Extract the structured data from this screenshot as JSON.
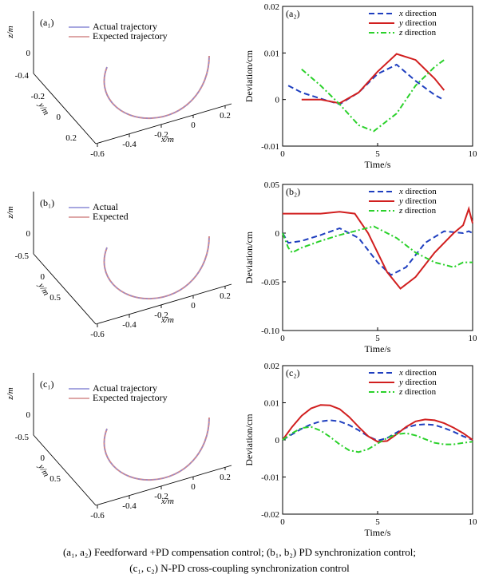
{
  "colors": {
    "actual": "#8a8ad6",
    "expected": "#d48a8a",
    "x_series": "#1f3fbf",
    "y_series": "#d11f1f",
    "z_series": "#2bd12b"
  },
  "caption": {
    "line1": "(a₁,  a₂)  Feedforward  +PD compensation control; (b₁, b₂) PD synchronization control;",
    "line2": "(c₁, c₂) N-PD cross-coupling synchronization control"
  },
  "chart_data": [
    {
      "panel": "(a₁)",
      "type": "line",
      "projection": "3d",
      "axis_labels": {
        "x": "x/m",
        "y": "y/m",
        "z": "z/m"
      },
      "x_ticks": [
        "-0.6",
        "-0.4",
        "-0.2",
        "0",
        "0.2"
      ],
      "y_ticks": [
        "-0.4",
        "-0.2",
        "0",
        "0.2"
      ],
      "z_ticks": [
        "0"
      ],
      "legend": [
        "Actual trajectory",
        "Expected trajectory"
      ]
    },
    {
      "panel": "(a₂)",
      "type": "line",
      "xlabel": "Time/s",
      "ylabel": "Deviation/cm",
      "xlim": [
        0,
        10
      ],
      "ylim": [
        -0.01,
        0.02
      ],
      "x_ticks": [
        "0",
        "5",
        "10"
      ],
      "y_ticks": [
        "-0.01",
        "0",
        "0.01",
        "0.02"
      ],
      "legend_position": "top-right",
      "series": [
        {
          "name": "x direction",
          "style": "dashed",
          "x": [
            0.3,
            1,
            2,
            3,
            4,
            5,
            6,
            7,
            8,
            8.5
          ],
          "y": [
            0.003,
            0.0015,
            0.0002,
            -0.001,
            0.0015,
            0.0055,
            0.0075,
            0.004,
            0.001,
            -0.0001
          ]
        },
        {
          "name": "y direction",
          "style": "solid",
          "x": [
            1,
            2,
            3,
            4,
            5,
            6,
            7,
            8,
            8.5
          ],
          "y": [
            0,
            0,
            -0.0008,
            0.0015,
            0.006,
            0.0098,
            0.0085,
            0.0045,
            0.002
          ]
        },
        {
          "name": "z direction",
          "style": "dashdot",
          "x": [
            1,
            2,
            3,
            4,
            4.8,
            6,
            7,
            8,
            8.5
          ],
          "y": [
            0.0065,
            0.003,
            -0.001,
            -0.0055,
            -0.0068,
            -0.003,
            0.003,
            0.007,
            0.0085
          ]
        }
      ]
    },
    {
      "panel": "(b₁)",
      "type": "line",
      "projection": "3d",
      "axis_labels": {
        "x": "x/m",
        "y": "y/m",
        "z": "z/m"
      },
      "x_ticks": [
        "-0.6",
        "-0.4",
        "-0.2",
        "0",
        "0.2"
      ],
      "y_ticks": [
        "-0.5",
        "0",
        "0.5"
      ],
      "z_ticks": [
        "0"
      ],
      "legend": [
        "Actual",
        "Expected"
      ]
    },
    {
      "panel": "(b₂)",
      "type": "line",
      "xlabel": "Time/s",
      "ylabel": "Deviation/cm",
      "xlim": [
        0,
        10
      ],
      "ylim": [
        -0.1,
        0.05
      ],
      "x_ticks": [
        "0",
        "5",
        "10"
      ],
      "y_ticks": [
        "-0.10",
        "-0.05",
        "0",
        "0.05"
      ],
      "legend_position": "top-right",
      "series": [
        {
          "name": "x direction",
          "style": "dashed",
          "x": [
            0,
            0.3,
            1,
            2,
            3,
            4,
            5,
            5.7,
            6.5,
            7.5,
            8.5,
            9.5,
            9.8,
            10
          ],
          "y": [
            0,
            -0.01,
            -0.008,
            -0.002,
            0.005,
            -0.005,
            -0.03,
            -0.043,
            -0.035,
            -0.01,
            0.002,
            0.0,
            0.002,
            0
          ]
        },
        {
          "name": "y direction",
          "style": "solid",
          "x": [
            0,
            1,
            2,
            3,
            3.8,
            4.5,
            5.5,
            6.2,
            7,
            8,
            9,
            9.5,
            9.8,
            10
          ],
          "y": [
            0.02,
            0.02,
            0.02,
            0.022,
            0.02,
            0.0,
            -0.04,
            -0.057,
            -0.045,
            -0.02,
            0.0,
            0.008,
            0.025,
            0.01
          ]
        },
        {
          "name": "z direction",
          "style": "dashdot",
          "x": [
            0,
            0.3,
            0.5,
            1,
            2,
            3,
            4,
            4.8,
            6,
            7,
            8,
            9,
            9.5,
            10
          ],
          "y": [
            0,
            -0.015,
            -0.02,
            -0.015,
            -0.008,
            -0.002,
            0.003,
            0.007,
            -0.005,
            -0.02,
            -0.03,
            -0.035,
            -0.03,
            -0.03
          ]
        }
      ]
    },
    {
      "panel": "(c₁)",
      "type": "line",
      "projection": "3d",
      "axis_labels": {
        "x": "x/m",
        "y": "y/m",
        "z": "z/m"
      },
      "x_ticks": [
        "-0.6",
        "-0.4",
        "-0.2",
        "0",
        "0.2"
      ],
      "y_ticks": [
        "-0.5",
        "0",
        "0.5"
      ],
      "z_ticks": [
        "0"
      ],
      "legend": [
        "Actual trajectory",
        "Expected trajectory"
      ]
    },
    {
      "panel": "(c₂)",
      "type": "line",
      "xlabel": "Time/s",
      "ylabel": "Deviation/cm",
      "xlim": [
        0,
        10
      ],
      "ylim": [
        -0.02,
        0.02
      ],
      "x_ticks": [
        "0",
        "5",
        "10"
      ],
      "y_ticks": [
        "-0.02",
        "-0.01",
        "0",
        "0.01",
        "0.02"
      ],
      "legend_position": "top-right",
      "series": [
        {
          "name": "x direction",
          "style": "dashed",
          "x": [
            0,
            0.5,
            1,
            1.5,
            2,
            2.5,
            3,
            3.5,
            4,
            4.5,
            5,
            5.5,
            6,
            6.5,
            7,
            7.5,
            8,
            8.5,
            9,
            9.5,
            10
          ],
          "y": [
            0,
            0.0015,
            0.003,
            0.0042,
            0.005,
            0.0053,
            0.005,
            0.004,
            0.0026,
            0.001,
            -0.0002,
            0.0005,
            0.002,
            0.0033,
            0.004,
            0.0042,
            0.004,
            0.0032,
            0.0022,
            0.001,
            0
          ]
        },
        {
          "name": "y direction",
          "style": "solid",
          "x": [
            0,
            0.5,
            1,
            1.5,
            2,
            2.5,
            3,
            3.5,
            4,
            4.5,
            5,
            5.5,
            6,
            6.5,
            7,
            7.5,
            8,
            8.5,
            9,
            9.5,
            10
          ],
          "y": [
            0,
            0.0035,
            0.0065,
            0.0085,
            0.0094,
            0.0093,
            0.0083,
            0.0062,
            0.0035,
            0.001,
            -0.0005,
            -0.0003,
            0.0015,
            0.0035,
            0.005,
            0.0055,
            0.0053,
            0.0045,
            0.0033,
            0.0018,
            0
          ]
        },
        {
          "name": "z direction",
          "style": "dashdot",
          "x": [
            0,
            0.5,
            1,
            1.5,
            2,
            2.5,
            3,
            3.5,
            4,
            4.5,
            5,
            5.5,
            6,
            6.5,
            7,
            7.5,
            8,
            8.5,
            9,
            9.5,
            10
          ],
          "y": [
            0,
            0.0018,
            0.0032,
            0.0035,
            0.0025,
            0.0008,
            -0.0012,
            -0.0028,
            -0.0033,
            -0.0025,
            -0.001,
            0.0005,
            0.0015,
            0.0018,
            0.0012,
            0.0002,
            -0.0008,
            -0.0012,
            -0.0012,
            -0.0008,
            -0.0005
          ]
        }
      ]
    }
  ]
}
